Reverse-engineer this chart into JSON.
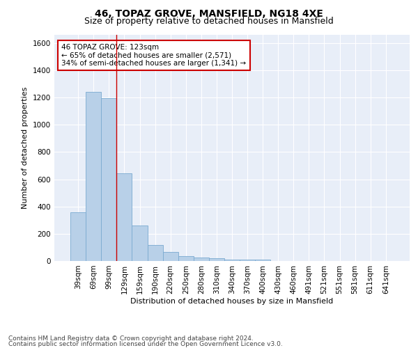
{
  "title": "46, TOPAZ GROVE, MANSFIELD, NG18 4XE",
  "subtitle": "Size of property relative to detached houses in Mansfield",
  "xlabel": "Distribution of detached houses by size in Mansfield",
  "ylabel": "Number of detached properties",
  "categories": [
    "39sqm",
    "69sqm",
    "99sqm",
    "129sqm",
    "159sqm",
    "190sqm",
    "220sqm",
    "250sqm",
    "280sqm",
    "310sqm",
    "340sqm",
    "370sqm",
    "400sqm",
    "430sqm",
    "460sqm",
    "491sqm",
    "521sqm",
    "551sqm",
    "581sqm",
    "611sqm",
    "641sqm"
  ],
  "values": [
    355,
    1240,
    1195,
    645,
    260,
    115,
    65,
    35,
    25,
    18,
    10,
    10,
    10,
    0,
    0,
    0,
    0,
    0,
    0,
    0,
    0
  ],
  "bar_color": "#b8d0e8",
  "bar_edge_color": "#7aaad0",
  "property_line_x": 2.5,
  "annotation_text1": "46 TOPAZ GROVE: 123sqm",
  "annotation_text2": "← 65% of detached houses are smaller (2,571)",
  "annotation_text3": "34% of semi-detached houses are larger (1,341) →",
  "annotation_box_color": "#cc0000",
  "ylim": [
    0,
    1660
  ],
  "yticks": [
    0,
    200,
    400,
    600,
    800,
    1000,
    1200,
    1400,
    1600
  ],
  "footer_line1": "Contains HM Land Registry data © Crown copyright and database right 2024.",
  "footer_line2": "Contains public sector information licensed under the Open Government Licence v3.0.",
  "bg_color": "#e8eef8",
  "grid_color": "#ffffff",
  "title_fontsize": 10,
  "subtitle_fontsize": 9,
  "axis_label_fontsize": 8,
  "tick_fontsize": 7.5,
  "footer_fontsize": 6.5
}
